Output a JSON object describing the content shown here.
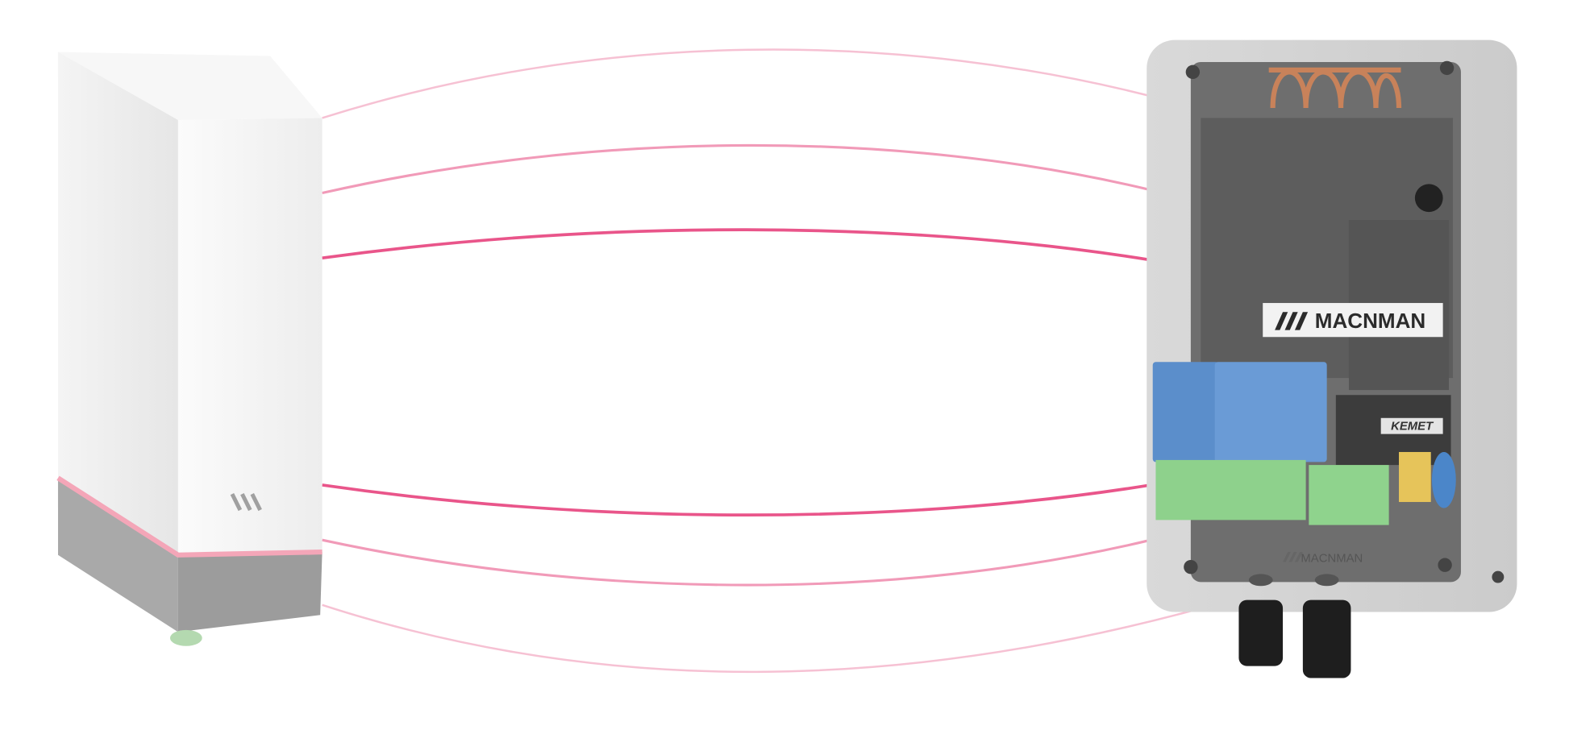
{
  "labels": {
    "logo": "MACNMAN",
    "component_brand": "KEMET",
    "footer_logo": "MACNMAN"
  }
}
